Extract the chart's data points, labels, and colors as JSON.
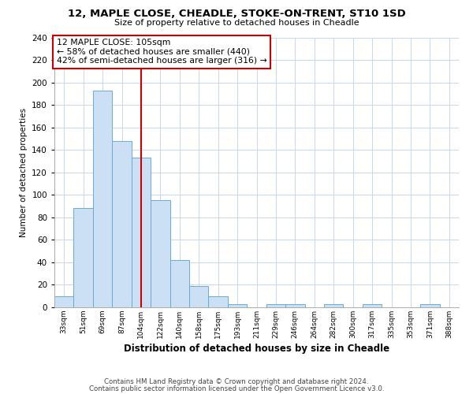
{
  "title1": "12, MAPLE CLOSE, CHEADLE, STOKE-ON-TRENT, ST10 1SD",
  "title2": "Size of property relative to detached houses in Cheadle",
  "xlabel": "Distribution of detached houses by size in Cheadle",
  "ylabel": "Number of detached properties",
  "categories": [
    "33sqm",
    "51sqm",
    "69sqm",
    "87sqm",
    "104sqm",
    "122sqm",
    "140sqm",
    "158sqm",
    "175sqm",
    "193sqm",
    "211sqm",
    "229sqm",
    "246sqm",
    "264sqm",
    "282sqm",
    "300sqm",
    "317sqm",
    "335sqm",
    "353sqm",
    "371sqm",
    "388sqm"
  ],
  "values": [
    10,
    88,
    193,
    148,
    133,
    95,
    42,
    19,
    10,
    3,
    0,
    3,
    3,
    0,
    3,
    0,
    3,
    0,
    0,
    3,
    0
  ],
  "bar_color": "#cce0f5",
  "bar_edge_color": "#6aaad4",
  "vline_x": 4,
  "vline_color": "#cc0000",
  "annotation_text": "12 MAPLE CLOSE: 105sqm\n← 58% of detached houses are smaller (440)\n42% of semi-detached houses are larger (316) →",
  "annotation_box_edge": "#cc0000",
  "ylim": [
    0,
    240
  ],
  "yticks": [
    0,
    20,
    40,
    60,
    80,
    100,
    120,
    140,
    160,
    180,
    200,
    220,
    240
  ],
  "footer1": "Contains HM Land Registry data © Crown copyright and database right 2024.",
  "footer2": "Contains public sector information licensed under the Open Government Licence v3.0.",
  "bg_color": "#ffffff",
  "grid_color": "#c8d8ea"
}
